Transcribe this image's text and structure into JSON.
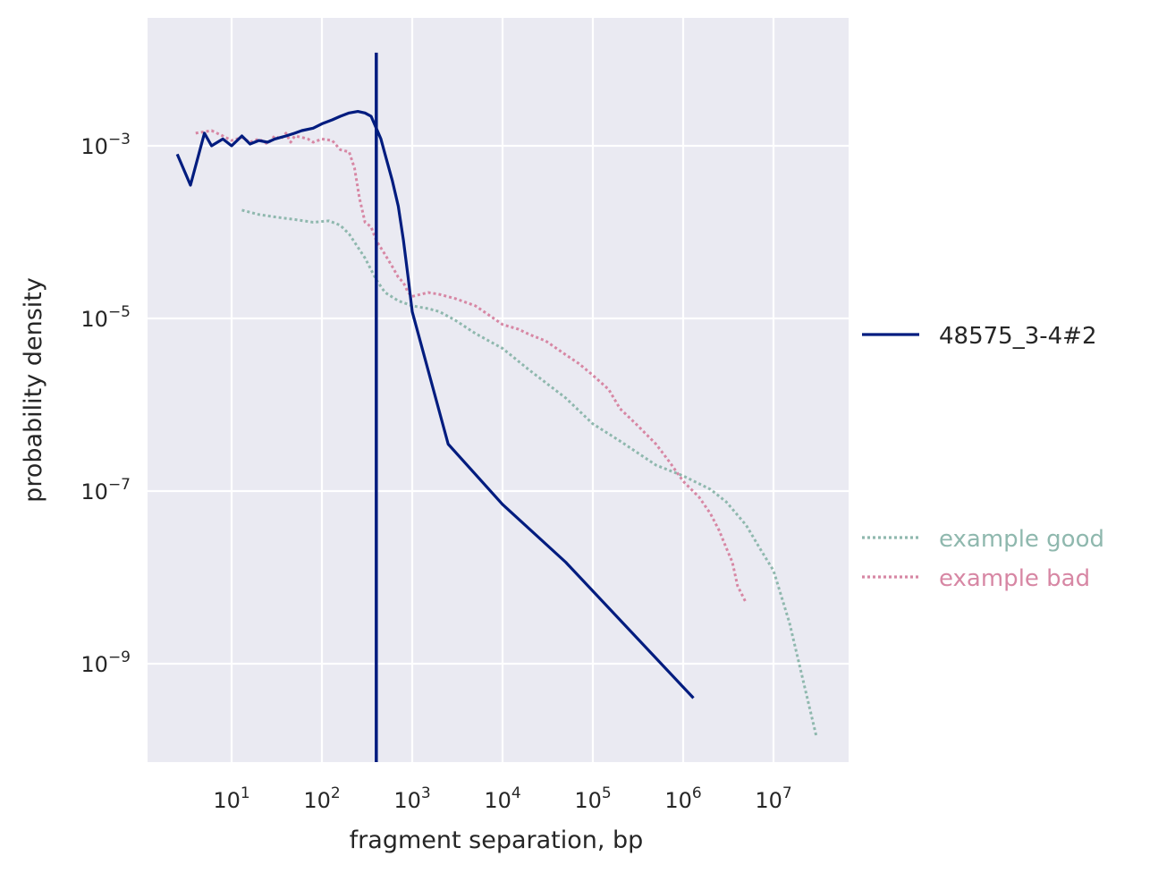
{
  "chart_data": {
    "type": "line",
    "xlabel": "fragment separation, bp",
    "ylabel": "probability density",
    "xscale": "log",
    "yscale": "log",
    "xlim": [
      1,
      70000000
    ],
    "ylim": [
      7e-11,
      0.03
    ],
    "grid": true,
    "x_ticks": [
      {
        "value": 10,
        "base": "10",
        "exp": "1"
      },
      {
        "value": 100,
        "base": "10",
        "exp": "2"
      },
      {
        "value": 1000,
        "base": "10",
        "exp": "3"
      },
      {
        "value": 10000,
        "base": "10",
        "exp": "4"
      },
      {
        "value": 100000,
        "base": "10",
        "exp": "5"
      },
      {
        "value": 1000000,
        "base": "10",
        "exp": "6"
      },
      {
        "value": 10000000,
        "base": "10",
        "exp": "7"
      }
    ],
    "y_ticks": [
      {
        "value": 1e-09,
        "base": "10",
        "exp": "−9"
      },
      {
        "value": 1e-07,
        "base": "10",
        "exp": "−7"
      },
      {
        "value": 1e-05,
        "base": "10",
        "exp": "−5"
      },
      {
        "value": 0.001,
        "base": "10",
        "exp": "−3"
      }
    ],
    "vertical_line": {
      "x": 400,
      "y_top": 0.012,
      "color": "#001c7f"
    },
    "legend_location": "right, outside plot",
    "series": [
      {
        "name": "48575_3-4#2",
        "style": "solid",
        "color": "#001c7f",
        "x": [
          2.5,
          3.5,
          5,
          6,
          8,
          10,
          13,
          16,
          20,
          25,
          30,
          40,
          50,
          60,
          80,
          100,
          130,
          160,
          200,
          250,
          300,
          350,
          400,
          450,
          500,
          600,
          700,
          800,
          900,
          1000,
          2500,
          10000,
          50000,
          1300000
        ],
        "y": [
          0.0008,
          0.00035,
          0.0014,
          0.001,
          0.0012,
          0.001,
          0.0013,
          0.00105,
          0.00115,
          0.0011,
          0.0012,
          0.0013,
          0.0014,
          0.0015,
          0.0016,
          0.0018,
          0.002,
          0.0022,
          0.0024,
          0.0025,
          0.0024,
          0.0022,
          0.0016,
          0.0012,
          0.0008,
          0.0004,
          0.0002,
          8e-05,
          3e-05,
          1.2e-05,
          3.5e-07,
          7e-08,
          1.5e-08,
          4e-10
        ]
      },
      {
        "name": "example good",
        "style": "dotted",
        "color": "#8fb8ae",
        "x": [
          13,
          20,
          30,
          50,
          80,
          120,
          160,
          200,
          300,
          400,
          500,
          700,
          1000,
          1500,
          2000,
          3000,
          5000,
          10000,
          20000,
          50000,
          100000,
          200000,
          500000,
          1000000,
          2000000,
          3000000,
          5000000,
          7000000,
          10000000,
          15000000,
          30000000
        ],
        "y": [
          0.00018,
          0.00016,
          0.00015,
          0.00014,
          0.00013,
          0.000135,
          0.00012,
          9.5e-05,
          5e-05,
          2.8e-05,
          2e-05,
          1.6e-05,
          1.4e-05,
          1.3e-05,
          1.2e-05,
          9.5e-06,
          6.7e-06,
          4.5e-06,
          2.5e-06,
          1.2e-06,
          6e-07,
          3.8e-07,
          2e-07,
          1.5e-07,
          1.05e-07,
          7.5e-08,
          4e-08,
          2.2e-08,
          1.2e-08,
          3e-09,
          1.4e-10
        ]
      },
      {
        "name": "example bad",
        "style": "dotted",
        "color": "#d787a4",
        "x": [
          4,
          6,
          8,
          10,
          13,
          16,
          20,
          25,
          30,
          35,
          40,
          45,
          50,
          60,
          70,
          80,
          100,
          130,
          160,
          200,
          230,
          260,
          300,
          350,
          400,
          500,
          600,
          700,
          800,
          900,
          1000,
          1500,
          2000,
          3000,
          5000,
          7000,
          10000,
          15000,
          20000,
          30000,
          50000,
          70000,
          100000,
          150000,
          200000,
          300000,
          500000,
          700000,
          1000000,
          1500000,
          2000000,
          2500000,
          3000000,
          3500000,
          4000000,
          5000000
        ],
        "y": [
          0.0014,
          0.0015,
          0.0013,
          0.00115,
          0.00125,
          0.0011,
          0.0012,
          0.00105,
          0.0013,
          0.0012,
          0.0014,
          0.0011,
          0.0013,
          0.00125,
          0.0012,
          0.0011,
          0.0012,
          0.00115,
          0.0009,
          0.00085,
          0.00055,
          0.00025,
          0.00013,
          0.000115,
          8e-05,
          5.5e-05,
          4e-05,
          3e-05,
          2.6e-05,
          2e-05,
          1.8e-05,
          2e-05,
          1.9e-05,
          1.7e-05,
          1.4e-05,
          1.1e-05,
          8.5e-06,
          7.5e-06,
          6.5e-06,
          5.5e-06,
          3.8e-06,
          3e-06,
          2.2e-06,
          1.5e-06,
          9e-07,
          6e-07,
          3.5e-07,
          2.2e-07,
          1.3e-07,
          8.5e-08,
          5.5e-08,
          3.5e-08,
          2.2e-08,
          1.5e-08,
          8e-09,
          5e-09
        ]
      }
    ]
  },
  "legend": {
    "main_label": "48575_3-4#2",
    "good_label": "example good",
    "bad_label": "example bad"
  }
}
